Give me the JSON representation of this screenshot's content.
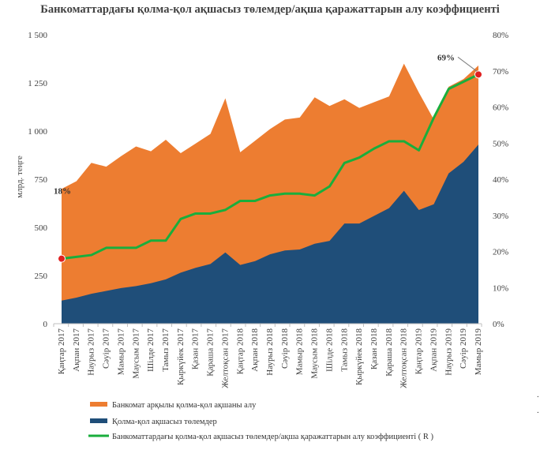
{
  "chart_data": {
    "type": "area",
    "title": "Банкоматтардағы қолма-қол ақшасыз төлемдер/ақша қаражаттарын алу коэффициенті",
    "ylabel": "млрд. теңге",
    "ylim": [
      0,
      1500
    ],
    "y2lim": [
      0,
      80
    ],
    "y_ticks": [
      "0",
      "250",
      "500",
      "750",
      "1 000",
      "1 250",
      "1 500"
    ],
    "y2_ticks": [
      "0%",
      "10%",
      "20%",
      "30%",
      "40%",
      "50%",
      "60%",
      "70%",
      "80%"
    ],
    "categories": [
      "Қаңтар 2017",
      "Ақпан 2017",
      "Наурыз 2017",
      "Сәуір 2017",
      "Мамыр 2017",
      "Маусым 2017",
      "Шілде 2017",
      "Тамыз 2017",
      "Қыркүйек 2017",
      "Қазан 2017",
      "Қараша 2017",
      "Желтоқсан 2017",
      "Қаңтар 2018",
      "Ақпан 2018",
      "Наурыз 2018",
      "Сәуір 2018",
      "Мамыр 2018",
      "Маусым 2018",
      "Шілде 2018",
      "Тамыз 2018",
      "Қыркүйек 2018",
      "Қазан 2018",
      "Қараша 2018",
      "Желтоқсан 2018",
      "Қаңтар 2019",
      "Ақпан 2019",
      "Наурыз 2019",
      "Сәуір 2019",
      "Мамыр 2019"
    ],
    "series": [
      {
        "name": "Банкомат арқылы қолма-қол ақшаны алу",
        "kind": "area",
        "axis": "left",
        "color": "#ED7D31",
        "values": [
          700,
          740,
          835,
          815,
          870,
          920,
          895,
          955,
          885,
          935,
          985,
          1170,
          890,
          950,
          1010,
          1060,
          1070,
          1175,
          1130,
          1165,
          1120,
          1150,
          1180,
          1350,
          1200,
          1060,
          1230,
          1270,
          1340
        ]
      },
      {
        "name": "Қолма-қол ақшасыз төлемдер",
        "kind": "area",
        "axis": "left",
        "color": "#1F4E79",
        "values": [
          120,
          135,
          155,
          170,
          185,
          195,
          210,
          230,
          265,
          290,
          310,
          370,
          305,
          325,
          360,
          380,
          385,
          415,
          430,
          520,
          520,
          560,
          600,
          690,
          590,
          620,
          780,
          840,
          930
        ]
      },
      {
        "name": "Банкоматтардағы қолма-қол ақшасыз төлемдер/ақша қаражаттарын алу коэффициенті ( R )",
        "kind": "line",
        "axis": "right",
        "color": "#1AAE3C",
        "values": [
          18,
          18.5,
          19,
          21,
          21,
          21,
          23,
          23,
          29,
          30.5,
          30.5,
          31.5,
          34,
          34,
          35.5,
          36,
          36,
          35.5,
          38,
          44.5,
          46,
          48.5,
          50.5,
          50.5,
          48,
          57,
          65,
          67,
          69
        ]
      }
    ],
    "annotations": [
      {
        "text": "18%",
        "index": 0
      },
      {
        "text": "69%",
        "index": 28
      }
    ],
    "legend_position": "bottom-left",
    "grid": false
  },
  "decor": {
    "dot1": ".",
    "dot2": "."
  }
}
